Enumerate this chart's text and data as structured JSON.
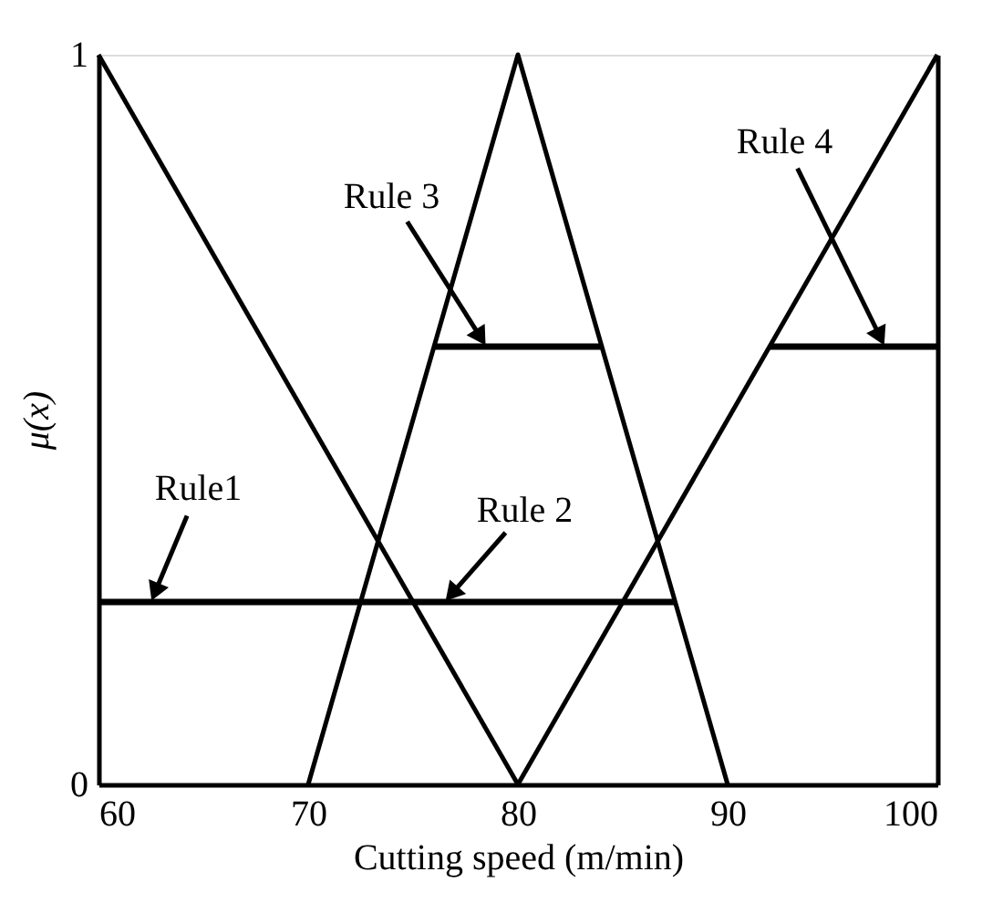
{
  "chart_data": {
    "type": "line",
    "xlabel": "Cutting speed (m/min)",
    "ylabel": "μ(x)",
    "series": [
      {
        "color": "#000000",
        "x": [
          60,
          80
        ],
        "values": [
          1,
          0
        ]
      },
      {
        "color": "#000000",
        "x": [
          70,
          80,
          90
        ],
        "values": [
          0,
          1,
          0
        ]
      },
      {
        "color": "#000000",
        "x": [
          80,
          100
        ],
        "values": [
          0,
          1
        ]
      },
      {
        "color": "#000000",
        "x": [
          60,
          87.5
        ],
        "values": [
          0.25,
          0.25
        ]
      },
      {
        "color": "#000000",
        "x": [
          76,
          84
        ],
        "values": [
          0.6,
          0.6
        ]
      },
      {
        "color": "#000000",
        "x": [
          92,
          100
        ],
        "values": [
          0.6,
          0.6
        ]
      }
    ],
    "annotations": [
      {
        "text": "Rule1",
        "x": 62.5,
        "y": 0.25
      },
      {
        "text": "Rule 2",
        "x": 76.5,
        "y": 0.25
      },
      {
        "text": "Rule 3",
        "x": 78.5,
        "y": 0.6
      },
      {
        "text": "Rule 4",
        "x": 97.5,
        "y": 0.6
      }
    ],
    "xlim": [
      60,
      100
    ],
    "ylim": [
      0,
      1
    ],
    "xticks": [
      60,
      70,
      80,
      90,
      100
    ],
    "yticks": [
      0,
      1
    ],
    "grid": false,
    "marker": "none",
    "line_style": "solid"
  }
}
